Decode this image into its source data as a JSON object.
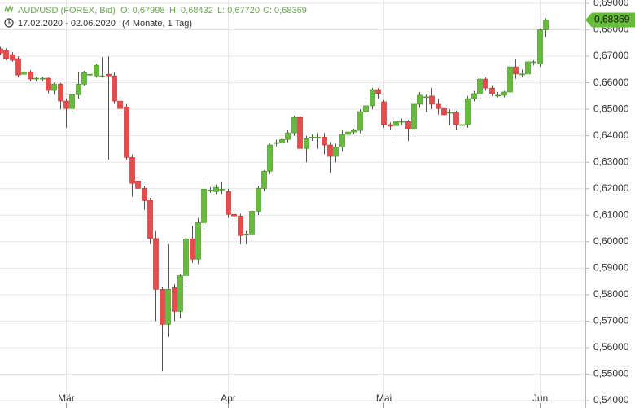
{
  "chart_data": {
    "type": "candlestick",
    "title": "AUD/USD (FOREX, Bid)",
    "ohlc_info": [
      "O: 0,67998",
      "H: 0,68432",
      "L: 0,67720",
      "C: 0,68369"
    ],
    "date_range": "17.02.2020 - 02.06.2020",
    "period": "(4 Monate, 1 Tag)",
    "last_price_label": "0,68369",
    "up_color": "#66bb3a",
    "down_color": "#e84b4b",
    "grid": true,
    "xlim": [
      0,
      97.5
    ],
    "xticks": [
      {
        "value": 11,
        "label": "Mär"
      },
      {
        "value": 38,
        "label": "Apr"
      },
      {
        "value": 64,
        "label": "Mai"
      },
      {
        "value": 90,
        "label": "Jun"
      }
    ],
    "ylim": [
      0.54,
      0.69
    ],
    "yticks": [
      {
        "value": 0.54,
        "label": "0,54000"
      },
      {
        "value": 0.55,
        "label": "0,55000"
      },
      {
        "value": 0.56,
        "label": "0,56000"
      },
      {
        "value": 0.57,
        "label": "0,57000"
      },
      {
        "value": 0.58,
        "label": "0,58000"
      },
      {
        "value": 0.59,
        "label": "0,59000"
      },
      {
        "value": 0.6,
        "label": "0,60000"
      },
      {
        "value": 0.61,
        "label": "0,61000"
      },
      {
        "value": 0.62,
        "label": "0,62000"
      },
      {
        "value": 0.63,
        "label": "0,63000"
      },
      {
        "value": 0.64,
        "label": "0,64000"
      },
      {
        "value": 0.65,
        "label": "0,65000"
      },
      {
        "value": 0.66,
        "label": "0,66000"
      },
      {
        "value": 0.67,
        "label": "0,67000"
      },
      {
        "value": 0.68,
        "label": "0,68000"
      },
      {
        "value": 0.69,
        "label": "0,69000"
      }
    ],
    "open": [
      0.6728,
      0.6722,
      0.6706,
      0.6691,
      0.6632,
      0.6641,
      0.6617,
      0.6617,
      0.6617,
      0.6571,
      0.6595,
      0.6531,
      0.6503,
      0.6555,
      0.6595,
      0.6632,
      0.6626,
      0.6626,
      0.6632,
      0.6626,
      0.6531,
      0.6509,
      0.6318,
      0.6229,
      0.6201,
      0.6158,
      0.6012,
      0.582,
      0.5688,
      0.5826,
      0.5737,
      0.5872,
      0.6011,
      0.5934,
      0.6072,
      0.6195,
      0.6189,
      0.6198,
      0.6189,
      0.6103,
      0.6097,
      0.6029,
      0.6029,
      0.6115,
      0.6201,
      0.6266,
      0.6374,
      0.6374,
      0.6386,
      0.6411,
      0.6469,
      0.6352,
      0.6395,
      0.6395,
      0.6395,
      0.6365,
      0.6322,
      0.6358,
      0.6405,
      0.6414,
      0.642,
      0.6491,
      0.6513,
      0.6574,
      0.6528,
      0.6442,
      0.6438,
      0.6454,
      0.6454,
      0.6426,
      0.6519,
      0.6547,
      0.655,
      0.6519,
      0.6503,
      0.6488,
      0.6488,
      0.6442,
      0.6442,
      0.654,
      0.6559,
      0.6614,
      0.658,
      0.6553,
      0.6553,
      0.6565,
      0.666,
      0.6633,
      0.6633,
      0.6679,
      0.6672,
      0.67998
    ],
    "high": [
      0.6735,
      0.673,
      0.6715,
      0.67,
      0.6648,
      0.6648,
      0.6622,
      0.6622,
      0.662,
      0.66,
      0.66,
      0.654,
      0.6565,
      0.664,
      0.6645,
      0.664,
      0.667,
      0.6697,
      0.67,
      0.664,
      0.6545,
      0.652,
      0.633,
      0.6245,
      0.621,
      0.6165,
      0.604,
      0.583,
      0.599,
      0.584,
      0.588,
      0.6015,
      0.606,
      0.609,
      0.623,
      0.6205,
      0.6215,
      0.6225,
      0.62,
      0.611,
      0.6105,
      0.604,
      0.612,
      0.621,
      0.627,
      0.637,
      0.6385,
      0.639,
      0.642,
      0.6475,
      0.6472,
      0.64,
      0.6405,
      0.641,
      0.641,
      0.6375,
      0.637,
      0.642,
      0.642,
      0.6425,
      0.65,
      0.653,
      0.658,
      0.658,
      0.6535,
      0.645,
      0.646,
      0.6465,
      0.646,
      0.653,
      0.6565,
      0.6555,
      0.658,
      0.654,
      0.651,
      0.65,
      0.6495,
      0.646,
      0.655,
      0.657,
      0.6625,
      0.662,
      0.659,
      0.6565,
      0.657,
      0.669,
      0.669,
      0.665,
      0.669,
      0.6685,
      0.6805,
      0.68432
    ],
    "low": [
      0.6705,
      0.6685,
      0.668,
      0.662,
      0.662,
      0.6605,
      0.6605,
      0.6605,
      0.656,
      0.6555,
      0.65,
      0.643,
      0.649,
      0.654,
      0.659,
      0.662,
      0.662,
      0.662,
      0.631,
      0.652,
      0.649,
      0.631,
      0.617,
      0.617,
      0.612,
      0.599,
      0.57,
      0.551,
      0.564,
      0.57,
      0.571,
      0.584,
      0.592,
      0.5915,
      0.605,
      0.6185,
      0.618,
      0.618,
      0.609,
      0.606,
      0.599,
      0.599,
      0.601,
      0.61,
      0.619,
      0.6255,
      0.636,
      0.6365,
      0.6375,
      0.64,
      0.629,
      0.63,
      0.638,
      0.635,
      0.633,
      0.626,
      0.63,
      0.634,
      0.6395,
      0.6405,
      0.641,
      0.647,
      0.65,
      0.654,
      0.643,
      0.642,
      0.638,
      0.644,
      0.638,
      0.641,
      0.6505,
      0.649,
      0.65,
      0.648,
      0.646,
      0.644,
      0.642,
      0.643,
      0.643,
      0.653,
      0.654,
      0.657,
      0.655,
      0.6545,
      0.6545,
      0.6555,
      0.6615,
      0.662,
      0.6625,
      0.6665,
      0.666,
      0.6772
    ],
    "close": [
      0.6712,
      0.6691,
      0.6685,
      0.6629,
      0.6641,
      0.6614,
      0.6617,
      0.6617,
      0.6571,
      0.6595,
      0.6531,
      0.6503,
      0.6555,
      0.6595,
      0.6638,
      0.6632,
      0.6666,
      0.6626,
      0.6626,
      0.6531,
      0.6503,
      0.6318,
      0.622,
      0.6201,
      0.6155,
      0.6012,
      0.582,
      0.5688,
      0.582,
      0.5737,
      0.5872,
      0.6011,
      0.5934,
      0.6072,
      0.6198,
      0.6195,
      0.6205,
      0.6198,
      0.6103,
      0.6097,
      0.6023,
      0.6029,
      0.6115,
      0.6201,
      0.6266,
      0.6365,
      0.6374,
      0.6386,
      0.6411,
      0.6469,
      0.6352,
      0.6389,
      0.6395,
      0.6395,
      0.6365,
      0.6322,
      0.6358,
      0.6405,
      0.6414,
      0.642,
      0.6491,
      0.6513,
      0.6574,
      0.656,
      0.6442,
      0.6436,
      0.6454,
      0.6454,
      0.6426,
      0.6519,
      0.6553,
      0.6547,
      0.6519,
      0.6503,
      0.6479,
      0.6488,
      0.6442,
      0.6442,
      0.654,
      0.6559,
      0.6614,
      0.658,
      0.6559,
      0.6553,
      0.6565,
      0.666,
      0.6633,
      0.6633,
      0.6679,
      0.6679,
      0.68,
      0.68369
    ]
  }
}
